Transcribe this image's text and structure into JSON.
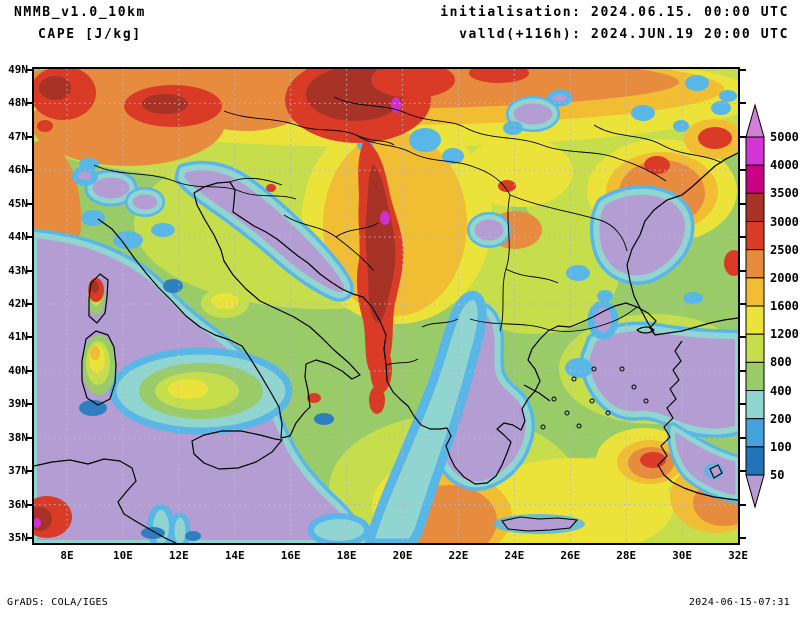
{
  "header": {
    "model": "NMMB_v1.0_10km",
    "variable": "CAPE [J/kg]",
    "init_line": "initialisation: 2024.06.15. 00:00 UTC",
    "valid_line": "valld(+116h): 2024.JUN.19 20:00 UTC"
  },
  "footer": {
    "left": "GrADS: COLA/IGES",
    "right": "2024-06-15-07:31"
  },
  "axes": {
    "y_ticks": [
      {
        "label": "49N",
        "lat": 49
      },
      {
        "label": "48N",
        "lat": 48
      },
      {
        "label": "47N",
        "lat": 47
      },
      {
        "label": "46N",
        "lat": 46
      },
      {
        "label": "45N",
        "lat": 45
      },
      {
        "label": "44N",
        "lat": 44
      },
      {
        "label": "43N",
        "lat": 43
      },
      {
        "label": "42N",
        "lat": 42
      },
      {
        "label": "41N",
        "lat": 41
      },
      {
        "label": "40N",
        "lat": 40
      },
      {
        "label": "39N",
        "lat": 39
      },
      {
        "label": "38N",
        "lat": 38
      },
      {
        "label": "37N",
        "lat": 37
      },
      {
        "label": "36N",
        "lat": 36
      },
      {
        "label": "35N",
        "lat": 35
      }
    ],
    "x_ticks": [
      {
        "label": "8E",
        "lon": 8
      },
      {
        "label": "10E",
        "lon": 10
      },
      {
        "label": "12E",
        "lon": 12
      },
      {
        "label": "14E",
        "lon": 14
      },
      {
        "label": "16E",
        "lon": 16
      },
      {
        "label": "18E",
        "lon": 18
      },
      {
        "label": "20E",
        "lon": 20
      },
      {
        "label": "22E",
        "lon": 22
      },
      {
        "label": "24E",
        "lon": 24
      },
      {
        "label": "26E",
        "lon": 26
      },
      {
        "label": "28E",
        "lon": 28
      },
      {
        "label": "30E",
        "lon": 30
      },
      {
        "label": "32E",
        "lon": 32
      }
    ],
    "grid_lons": [
      8,
      10,
      12,
      14,
      16,
      18,
      20,
      22,
      24,
      26,
      28,
      30
    ],
    "grid_lats": [
      36,
      38,
      40,
      42,
      44,
      46,
      48
    ]
  },
  "colorbar": {
    "labels_top_to_bottom": [
      "5000",
      "4000",
      "3500",
      "3000",
      "2500",
      "2000",
      "1600",
      "1200",
      "800",
      "400",
      "200",
      "100",
      "50"
    ],
    "segment_colors_top_to_bottom": [
      "#d336d4",
      "#cb0184",
      "#a73326",
      "#d93b26",
      "#e78b3e",
      "#f1bd33",
      "#ebe33a",
      "#c6de4b",
      "#99cb68",
      "#90d5cf",
      "#45a2dd",
      "#2373b8"
    ],
    "over_color": "#d27fd9",
    "under_color": "#b49dd2"
  },
  "chart_data": {
    "type": "heatmap",
    "subtype": "filled-contour-weather-map",
    "title": "CAPE [J/kg] — NMMB_v1.0_10km",
    "variable": "CAPE",
    "units": "J/kg",
    "model": "NMMB_v1.0_10km",
    "initialisation": "2024.06.15. 00:00 UTC",
    "forecast_lead": "+116h",
    "valid_time": "2024.JUN.19 20:00 UTC",
    "region": "central Mediterranean / Balkans",
    "x_axis": {
      "label": "longitude",
      "tick_labels": [
        "8E",
        "10E",
        "12E",
        "14E",
        "16E",
        "18E",
        "20E",
        "22E",
        "24E",
        "26E",
        "28E",
        "30E",
        "32E"
      ],
      "range_deg_e": [
        6.8,
        32
      ],
      "tick_interval_deg": 2
    },
    "y_axis": {
      "label": "latitude",
      "tick_labels": [
        "35N",
        "36N",
        "37N",
        "38N",
        "39N",
        "40N",
        "41N",
        "42N",
        "43N",
        "44N",
        "45N",
        "46N",
        "47N",
        "48N",
        "49N"
      ],
      "range_deg_n": [
        34.9,
        49.1
      ],
      "tick_interval_deg": 1
    },
    "contour_levels_j_per_kg": [
      50,
      100,
      200,
      400,
      800,
      1200,
      1600,
      2000,
      2500,
      3000,
      3500,
      4000,
      5000
    ],
    "color_scale": [
      {
        "range": "< 50",
        "color": "#b49dd2"
      },
      {
        "range": "50-100",
        "color": "#2373b8"
      },
      {
        "range": "100-200",
        "color": "#45a2dd"
      },
      {
        "range": "200-400",
        "color": "#90d5cf"
      },
      {
        "range": "400-800",
        "color": "#99cb68"
      },
      {
        "range": "800-1200",
        "color": "#c6de4b"
      },
      {
        "range": "1200-1600",
        "color": "#ebe33a"
      },
      {
        "range": "1600-2000",
        "color": "#f1bd33"
      },
      {
        "range": "2000-2500",
        "color": "#e78b3e"
      },
      {
        "range": "2500-3000",
        "color": "#d93b26"
      },
      {
        "range": "3000-3500",
        "color": "#a73326"
      },
      {
        "range": "3500-4000",
        "color": "#cb0184"
      },
      {
        "range": "4000-5000",
        "color": "#d336d4"
      },
      {
        "range": "> 5000",
        "color": "#d27fd9"
      }
    ],
    "grid": {
      "shown": true,
      "style": "dotted",
      "lon_spacing_deg": 2,
      "lat_spacing_deg": 2
    },
    "legend_position": "right",
    "notable_features": [
      "CAPE maximum > 4000-5000 J/kg (magenta spot) near 18.8E 48.1N (SW Slovakia / Hungary border)",
      "CAPE maximum > 4000-5000 J/kg (magenta spot) near 19.5E 44.5N (Serbia/Bosnia)",
      "Elongated 2500-3500 J/kg red band along ~19-20E from 41N to 48.5N (western Balkans, Albania)",
      "2000-3000 J/kg orange/red band along northern edge 47N-49N with red cores near 8.5E, 12.5E and 17-19E",
      "CAPE < 50 J/kg (lavender) over Tyrrhenian Sea, central/southern Italy, Ionian Sea, Sicily",
      "CAPE < 50 J/kg over Aegean Sea, Greece, western Turkey, Sea of Marmara and western Black Sea",
      "Red spots: Corsica (~9E 42.3N), Tunisia coast (~7E 35.5N, magenta core), SE Aegean (~27.5E 36.9N), ~31E 47N and ~29E 46.2N",
      "Cyan 100-400 J/kg fringes surrounding all low-CAPE purple areas"
    ]
  }
}
